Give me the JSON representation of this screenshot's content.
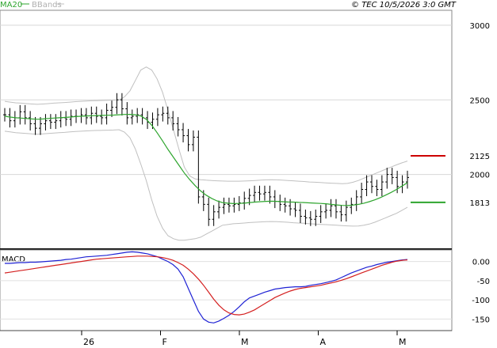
{
  "header": {
    "ma_label": "MA20",
    "bbands_label": "BBands",
    "copyright": "© TEC 10/5/2026 3:0 GMT"
  },
  "colors": {
    "price_bars": "#000000",
    "ma20": "#2ea52e",
    "bbands": "#c0c0c0",
    "macd_line": "#1f22d4",
    "signal_line": "#d42020",
    "resistance_marker": "#cc0000",
    "support_marker": "#2ea52e"
  },
  "chart_data": [
    {
      "type": "line",
      "panel": "price",
      "y_ticks": [
        {
          "value": 2000,
          "label": "2000"
        },
        {
          "value": 2500,
          "label": "2500"
        },
        {
          "value": 3000,
          "label": "3000"
        }
      ],
      "ylim": [
        1500,
        3100
      ],
      "x_ticks": [
        {
          "index": 0,
          "label": "26"
        },
        {
          "index": 20,
          "label": "F"
        },
        {
          "index": 40,
          "label": "M"
        },
        {
          "index": 60,
          "label": "A"
        },
        {
          "index": 80,
          "label": "M"
        }
      ],
      "series": [
        {
          "name": "MA20",
          "kind": "line",
          "color": "#2ea52e",
          "values": [
            2390,
            2385,
            2380,
            2378,
            2375,
            2372,
            2370,
            2372,
            2375,
            2378,
            2380,
            2382,
            2385,
            2388,
            2390,
            2392,
            2394,
            2395,
            2396,
            2397,
            2398,
            2400,
            2402,
            2403,
            2400,
            2392,
            2370,
            2330,
            2280,
            2225,
            2168,
            2115,
            2062,
            2010,
            1965,
            1925,
            1890,
            1862,
            1840,
            1823,
            1812,
            1808,
            1805,
            1806,
            1808,
            1812,
            1815,
            1818,
            1820,
            1821,
            1820,
            1818,
            1816,
            1815,
            1813,
            1812,
            1810,
            1808,
            1806,
            1804,
            1800,
            1796,
            1793,
            1792,
            1795,
            1800,
            1808,
            1818,
            1830,
            1845,
            1862,
            1880,
            1900,
            1922,
            1945
          ]
        },
        {
          "name": "BBands upper",
          "kind": "band",
          "color": "#c0c0c0",
          "values": [
            2490,
            2485,
            2480,
            2478,
            2475,
            2472,
            2470,
            2472,
            2475,
            2478,
            2480,
            2482,
            2485,
            2488,
            2490,
            2492,
            2494,
            2495,
            2496,
            2497,
            2498,
            2500,
            2520,
            2560,
            2630,
            2700,
            2720,
            2700,
            2640,
            2550,
            2430,
            2300,
            2170,
            2050,
            1990,
            1970,
            1965,
            1962,
            1960,
            1958,
            1956,
            1955,
            1955,
            1955,
            1956,
            1958,
            1960,
            1962,
            1964,
            1965,
            1964,
            1962,
            1960,
            1958,
            1955,
            1953,
            1950,
            1948,
            1946,
            1944,
            1942,
            1940,
            1938,
            1940,
            1948,
            1960,
            1975,
            1990,
            2005,
            2020,
            2035,
            2050,
            2065,
            2078,
            2090
          ]
        },
        {
          "name": "BBands lower",
          "kind": "band",
          "color": "#c0c0c0",
          "values": [
            2290,
            2285,
            2280,
            2278,
            2275,
            2272,
            2270,
            2272,
            2275,
            2278,
            2280,
            2282,
            2285,
            2288,
            2290,
            2292,
            2294,
            2295,
            2296,
            2297,
            2298,
            2300,
            2284,
            2246,
            2170,
            2070,
            1960,
            1830,
            1720,
            1640,
            1590,
            1570,
            1560,
            1560,
            1565,
            1570,
            1580,
            1600,
            1620,
            1640,
            1660,
            1665,
            1670,
            1672,
            1675,
            1678,
            1680,
            1682,
            1684,
            1685,
            1684,
            1682,
            1680,
            1677,
            1675,
            1673,
            1670,
            1668,
            1666,
            1664,
            1662,
            1660,
            1658,
            1656,
            1654,
            1655,
            1660,
            1668,
            1680,
            1695,
            1710,
            1725,
            1740,
            1760,
            1780
          ]
        }
      ],
      "ohlc_close": [
        2400,
        2360,
        2380,
        2420,
        2380,
        2340,
        2310,
        2340,
        2360,
        2350,
        2360,
        2380,
        2370,
        2390,
        2390,
        2400,
        2380,
        2410,
        2390,
        2380,
        2430,
        2450,
        2500,
        2440,
        2380,
        2390,
        2400,
        2380,
        2350,
        2370,
        2400,
        2410,
        2380,
        2340,
        2300,
        2260,
        2200,
        2250,
        1850,
        1800,
        1700,
        1750,
        1780,
        1800,
        1790,
        1800,
        1810,
        1840,
        1860,
        1880,
        1870,
        1880,
        1850,
        1820,
        1800,
        1790,
        1770,
        1760,
        1720,
        1710,
        1700,
        1720,
        1750,
        1760,
        1790,
        1750,
        1730,
        1780,
        1800,
        1850,
        1900,
        1950,
        1920,
        1900,
        1950,
        2000,
        1980,
        1920,
        1950,
        1980
      ]
    },
    {
      "type": "line",
      "panel": "markers",
      "markers": [
        {
          "value": 2125,
          "label": "2125",
          "color": "#cc0000"
        },
        {
          "value": 1813,
          "label": "1813",
          "color": "#2ea52e"
        }
      ]
    },
    {
      "type": "line",
      "panel": "macd",
      "title": "MACD",
      "y_ticks": [
        {
          "value": 0,
          "label": "0.00"
        },
        {
          "value": -50,
          "label": "-50"
        },
        {
          "value": -100,
          "label": "-100"
        },
        {
          "value": -150,
          "label": "-150"
        }
      ],
      "ylim": [
        -180,
        30
      ],
      "series": [
        {
          "name": "MACD",
          "color": "#1f22d4",
          "values": [
            -5,
            -5,
            -4,
            -3,
            -3,
            -2,
            -2,
            -1,
            0,
            1,
            2,
            3,
            5,
            6,
            8,
            10,
            12,
            13,
            14,
            15,
            16,
            18,
            20,
            22,
            24,
            25,
            24,
            22,
            20,
            16,
            12,
            6,
            0,
            -8,
            -20,
            -40,
            -70,
            -100,
            -130,
            -150,
            -158,
            -160,
            -155,
            -148,
            -140,
            -130,
            -118,
            -105,
            -95,
            -90,
            -85,
            -80,
            -76,
            -72,
            -70,
            -68,
            -67,
            -66,
            -66,
            -65,
            -62,
            -60,
            -58,
            -55,
            -52,
            -48,
            -42,
            -36,
            -30,
            -25,
            -20,
            -15,
            -12,
            -8,
            -5,
            -2,
            0,
            2,
            4,
            5
          ]
        },
        {
          "name": "Signal",
          "color": "#d42020",
          "values": [
            -30,
            -28,
            -26,
            -24,
            -22,
            -20,
            -18,
            -16,
            -14,
            -12,
            -10,
            -8,
            -6,
            -4,
            -2,
            0,
            2,
            4,
            6,
            7,
            8,
            9,
            10,
            11,
            12,
            13,
            14,
            14,
            14,
            13,
            12,
            10,
            7,
            3,
            -3,
            -10,
            -20,
            -32,
            -46,
            -62,
            -80,
            -98,
            -114,
            -126,
            -134,
            -138,
            -139,
            -137,
            -132,
            -126,
            -118,
            -110,
            -102,
            -94,
            -88,
            -82,
            -77,
            -73,
            -70,
            -68,
            -66,
            -64,
            -62,
            -59,
            -56,
            -53,
            -49,
            -45,
            -40,
            -35,
            -30,
            -25,
            -20,
            -15,
            -10,
            -6,
            -2,
            1,
            3,
            4
          ]
        }
      ]
    }
  ]
}
